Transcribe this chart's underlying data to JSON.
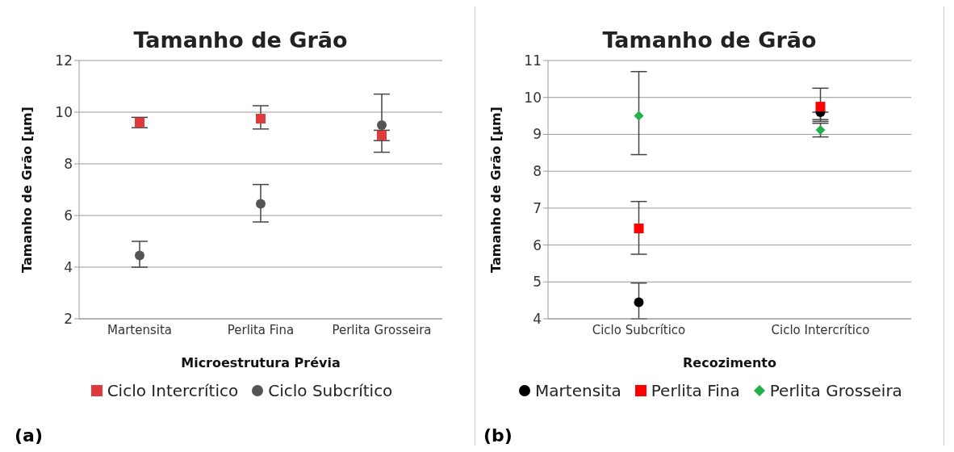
{
  "chart_data": [
    {
      "type": "scatter",
      "title": "Tamanho de Grão",
      "xlabel": "Microestrutura Prévia",
      "ylabel": "Tamanho de Grão [µm]",
      "categories": [
        "Martensita",
        "Perlita Fina",
        "Perlita Grosseira"
      ],
      "ylim": [
        2,
        12
      ],
      "yticks": [
        2,
        4,
        6,
        8,
        10,
        12
      ],
      "grid": "y",
      "legend": "bottom",
      "annotations": [
        "(a)"
      ],
      "series": [
        {
          "name": "Ciclo Intercrítico",
          "color": "#e03a3a",
          "marker": "square",
          "values": [
            9.6,
            9.75,
            9.1
          ],
          "errors": [
            [
              9.4,
              9.8
            ],
            [
              9.35,
              10.25
            ],
            [
              8.9,
              9.3
            ]
          ]
        },
        {
          "name": "Ciclo Subcrítico",
          "color": "#555555",
          "marker": "circle",
          "values": [
            4.45,
            6.45,
            9.5
          ],
          "errors": [
            [
              4.0,
              5.0
            ],
            [
              5.75,
              7.2
            ],
            [
              8.45,
              10.7
            ]
          ]
        }
      ]
    },
    {
      "type": "scatter",
      "title": "Tamanho de Grão",
      "xlabel": "Recozimento",
      "ylabel": "Tamanho de Grão [µm]",
      "categories": [
        "Ciclo Subcrítico",
        "Ciclo Intercrítico"
      ],
      "ylim": [
        4,
        11
      ],
      "yticks": [
        4,
        5,
        6,
        7,
        8,
        9,
        10,
        11
      ],
      "grid": "y",
      "legend": "bottom",
      "annotations": [
        "(b)"
      ],
      "series": [
        {
          "name": "Martensita",
          "color": "#000000",
          "marker": "circle",
          "values": [
            4.45,
            9.6
          ],
          "errors": [
            [
              4.0,
              4.97
            ],
            [
              9.4,
              9.6
            ]
          ]
        },
        {
          "name": "Perlita Fina",
          "color": "#ff0000",
          "marker": "square",
          "values": [
            6.45,
            9.75
          ],
          "errors": [
            [
              5.75,
              7.18
            ],
            [
              9.35,
              10.25
            ]
          ]
        },
        {
          "name": "Perlita Grosseira",
          "color": "#22b04a",
          "marker": "diamond",
          "values": [
            9.5,
            9.12
          ],
          "errors": [
            [
              8.45,
              10.7
            ],
            [
              8.93,
              9.3
            ]
          ]
        }
      ]
    }
  ]
}
